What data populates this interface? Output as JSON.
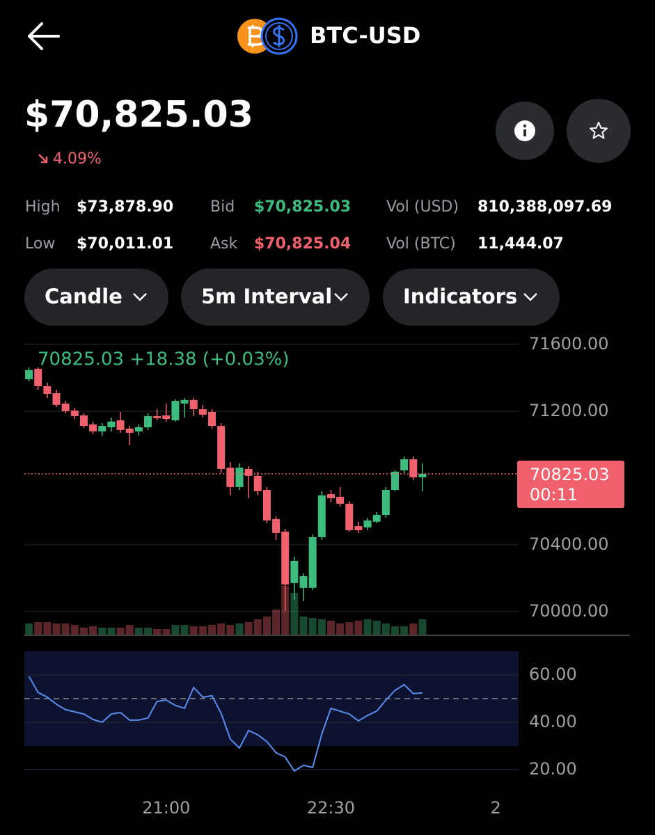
{
  "header": {
    "title": "BTC-USD"
  },
  "price": {
    "value": "$70,825.03",
    "change": "4.09%"
  },
  "stats": [
    [
      {
        "label": "High",
        "value": "$73,878.90"
      },
      {
        "label": "Bid",
        "value": "$70,825.03"
      },
      {
        "label": "Vol (USD)",
        "value": "810,388,097.69"
      }
    ],
    [
      {
        "label": "Low",
        "value": "$70,011.01"
      },
      {
        "label": "Ask",
        "value": "$70,825.04"
      },
      {
        "label": "Vol (BTC)",
        "value": "11,444.07"
      }
    ]
  ],
  "controls": [
    "Candle",
    "5m Interval",
    "Indicators"
  ],
  "chart_data": [
    {
      "type": "candlestick",
      "legend_text": "70825.03 +18.38 (+0.03%)",
      "open": [
        71392,
        71454,
        71350,
        71308,
        71246,
        71204,
        71175,
        71121,
        71079,
        71104,
        71146,
        71096,
        71079,
        71104,
        71171,
        71175,
        71146,
        71246,
        71267,
        71212,
        71196,
        71112,
        70862,
        70746,
        70854,
        70813,
        70729,
        70554,
        70479,
        70171,
        70142,
        70142,
        70446,
        70704,
        70687,
        70646,
        70512,
        70504,
        70538,
        70579,
        70729,
        70846,
        70912,
        70804
      ],
      "high": [
        71462,
        71462,
        71371,
        71329,
        71262,
        71221,
        71188,
        71138,
        71129,
        71162,
        71196,
        71112,
        71121,
        71188,
        71212,
        71246,
        71271,
        71279,
        71279,
        71238,
        71212,
        71129,
        70896,
        70888,
        70871,
        70838,
        70746,
        70571,
        70496,
        70329,
        70229,
        70462,
        70721,
        70729,
        70746,
        70662,
        70538,
        70562,
        70596,
        70746,
        70846,
        70929,
        70929,
        70888
      ],
      "low": [
        71379,
        71329,
        71279,
        71225,
        71188,
        71154,
        71100,
        71062,
        71054,
        71079,
        71071,
        70996,
        71054,
        71088,
        71146,
        71138,
        71138,
        71162,
        71171,
        71162,
        71096,
        70829,
        70696,
        70729,
        70679,
        70696,
        70529,
        70429,
        70004,
        70071,
        70062,
        70129,
        70429,
        70654,
        70629,
        70479,
        70471,
        70487,
        70529,
        70562,
        70721,
        70829,
        70788,
        70721
      ],
      "close": [
        71446,
        71350,
        71304,
        71238,
        71200,
        71171,
        71112,
        71079,
        71112,
        71138,
        71088,
        71071,
        71104,
        71171,
        71158,
        71154,
        71262,
        71267,
        71212,
        71179,
        71112,
        70854,
        70746,
        70862,
        70813,
        70721,
        70546,
        70471,
        70162,
        70304,
        70212,
        70446,
        70696,
        70679,
        70646,
        70487,
        70487,
        70546,
        70579,
        70729,
        70838,
        70912,
        70804,
        70825.03
      ],
      "volume": [
        16,
        18,
        18,
        16,
        16,
        14,
        10,
        12,
        10,
        10,
        10,
        14,
        10,
        10,
        8,
        8,
        14,
        14,
        12,
        12,
        14,
        16,
        14,
        16,
        18,
        22,
        26,
        36,
        70,
        60,
        26,
        24,
        22,
        20,
        16,
        18,
        20,
        22,
        20,
        16,
        12,
        12,
        16,
        22
      ],
      "up_color": "#3dbd7d",
      "down_color": "#f0616d",
      "xlim": [
        -0.5,
        53.5
      ],
      "ylim": [
        69862,
        71621
      ],
      "yticks": [
        {
          "value": 71600,
          "label": "71600.00"
        },
        {
          "value": 71200,
          "label": "71200.00"
        },
        {
          "value": 70400,
          "label": "70400.00"
        },
        {
          "value": 70000,
          "label": "70000.00"
        }
      ],
      "grid": true,
      "current_price": 70825.03,
      "countdown": "00:11"
    },
    {
      "type": "line",
      "values": [
        59.4,
        52.6,
        50.6,
        47.6,
        45.3,
        44.4,
        43.5,
        41.2,
        40,
        43.5,
        44.1,
        40.9,
        40.9,
        41.8,
        48.8,
        49.4,
        47.1,
        45.9,
        54.7,
        50.6,
        51.2,
        43.8,
        32.9,
        29.1,
        36.5,
        34.7,
        31.8,
        27.1,
        25.3,
        19.4,
        21.8,
        20.9,
        35,
        45.9,
        44.7,
        43.5,
        40.6,
        42.9,
        44.7,
        49.4,
        53.5,
        55.9,
        52.1,
        52.4
      ],
      "color": "#5b8def",
      "band": [
        30,
        70
      ],
      "midline": 50,
      "xlim": [
        -0.5,
        53.5
      ],
      "ylim": [
        18.8,
        70
      ],
      "yticks": [
        {
          "value": 60,
          "label": "60.00"
        },
        {
          "value": 40,
          "label": "40.00"
        },
        {
          "value": 20,
          "label": "20.00"
        }
      ],
      "xticks": [
        {
          "value": 15,
          "label": "21:00"
        },
        {
          "value": 33,
          "label": "22:30"
        },
        {
          "value": 51,
          "label": "2"
        }
      ],
      "grid": true
    }
  ]
}
